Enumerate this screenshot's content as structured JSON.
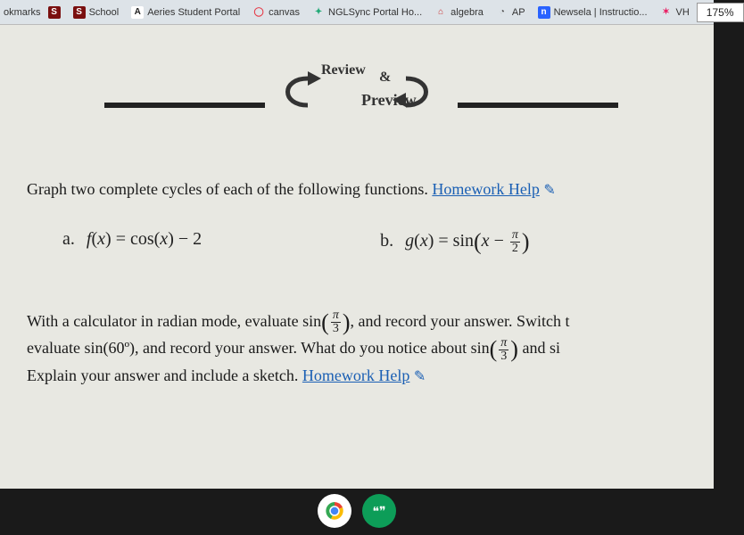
{
  "bookmarks": {
    "label": "okmarks",
    "items": [
      {
        "icon_bg": "#7a0f0f",
        "icon_fg": "#fff",
        "icon_txt": "S",
        "label": ""
      },
      {
        "icon_bg": "#7a0f0f",
        "icon_fg": "#fff",
        "icon_txt": "S",
        "label": "School"
      },
      {
        "icon_bg": "#fff",
        "icon_fg": "#222",
        "icon_txt": "A",
        "label": "Aeries Student Portal"
      },
      {
        "icon_bg": "transparent",
        "icon_fg": "#e63946",
        "icon_txt": "◯",
        "label": "canvas"
      },
      {
        "icon_bg": "transparent",
        "icon_fg": "#2a7",
        "icon_txt": "✦",
        "label": "NGLSync Portal Ho..."
      },
      {
        "icon_bg": "transparent",
        "icon_fg": "#c33",
        "icon_txt": "⌂",
        "label": "algebra"
      },
      {
        "icon_bg": "transparent",
        "icon_fg": "#555",
        "icon_txt": "◔",
        "label": "AP"
      },
      {
        "icon_bg": "#2962ff",
        "icon_fg": "#fff",
        "icon_txt": "n",
        "label": "Newsela | Instructio..."
      },
      {
        "icon_bg": "transparent",
        "icon_fg": "#e91e63",
        "icon_txt": "✶",
        "label": "VH"
      }
    ],
    "zoom": "175%"
  },
  "header": {
    "review": "Review",
    "amp": "&",
    "preview": "Preview"
  },
  "problem1": {
    "intro": "Graph two complete cycles of each of the following functions. ",
    "link": "Homework Help",
    "eq_a_label": "a.",
    "eq_a_lhs_f": "f",
    "eq_a_lhs_x": "x",
    "eq_a_rhs": " = cos(",
    "eq_a_rhs2": ") − 2",
    "eq_b_label": "b.",
    "eq_b_g": "g",
    "eq_b_x": "x",
    "eq_b_sin": " = sin",
    "eq_b_minus": " − ",
    "pi": "π",
    "two": "2"
  },
  "problem2": {
    "l1a": "With a calculator in radian mode, evaluate sin",
    "l1b": ", and record your answer. Switch t",
    "l2a": "evaluate sin(60º), and record your answer. What do you notice about sin",
    "l2b": " and si",
    "l3a": "Explain your answer and include a sketch. ",
    "link": "Homework Help",
    "pi": "π",
    "three": "3"
  },
  "colors": {
    "link": "#1a5fb4",
    "page_bg": "#e8e8e2",
    "text": "#1a1a1a"
  }
}
